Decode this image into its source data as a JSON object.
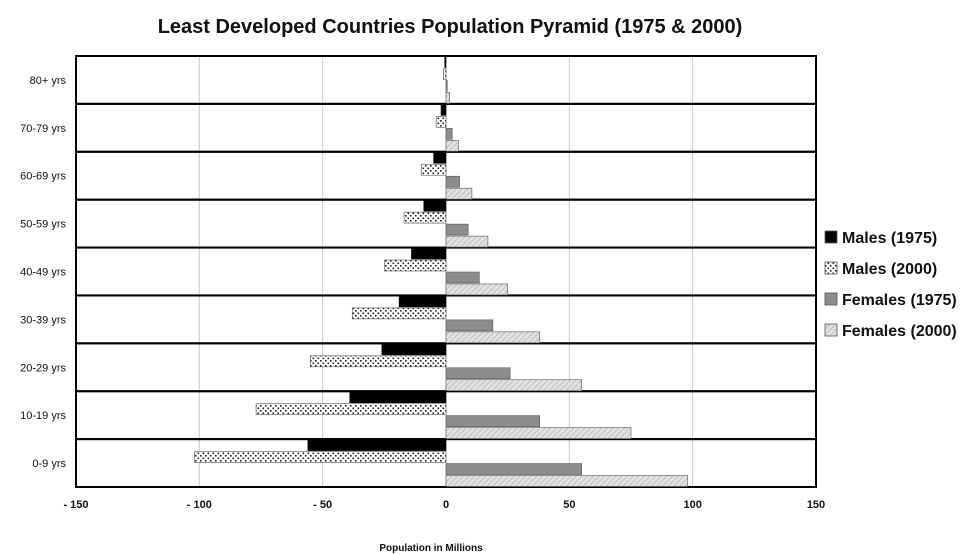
{
  "chart_data": {
    "type": "bar",
    "orientation": "horizontal",
    "title": "Least Developed Countries Population Pyramid (1975 & 2000)",
    "xlabel": "Population in Millions",
    "ylabel": "",
    "xlim": [
      -150,
      150
    ],
    "x_ticks": [
      -150,
      -100,
      -50,
      0,
      50,
      100,
      150
    ],
    "x_tick_labels": [
      "- 150",
      "- 100",
      "- 50",
      "0",
      "50",
      "100",
      "150"
    ],
    "grid": true,
    "legend_position": "right",
    "categories": [
      "80+ yrs",
      "70-79 yrs",
      "60-69 yrs",
      "50-59 yrs",
      "40-49 yrs",
      "30-39 yrs",
      "20-29 yrs",
      "10-19 yrs",
      "0-9 yrs"
    ],
    "series": [
      {
        "name": "Males (1975)",
        "values": [
          -0.5,
          -2,
          -5,
          -9,
          -14,
          -19,
          -26,
          -39,
          -56
        ],
        "color": "#000000",
        "pattern": "solid-black"
      },
      {
        "name": "Males (2000)",
        "values": [
          -1,
          -4,
          -10,
          -17,
          -25,
          -38,
          -55,
          -77,
          -102
        ],
        "color": "#ffffff",
        "pattern": "speckled"
      },
      {
        "name": "Females (1975)",
        "values": [
          0.5,
          2.5,
          5.5,
          9,
          13.5,
          19,
          26,
          38,
          55
        ],
        "color": "#8c8c8c",
        "pattern": "solid-gray"
      },
      {
        "name": "Females (2000)",
        "values": [
          1.5,
          5,
          10.5,
          17,
          25,
          38,
          55,
          75,
          98
        ],
        "color": "#d8d8d8",
        "pattern": "hatched-light"
      }
    ]
  }
}
